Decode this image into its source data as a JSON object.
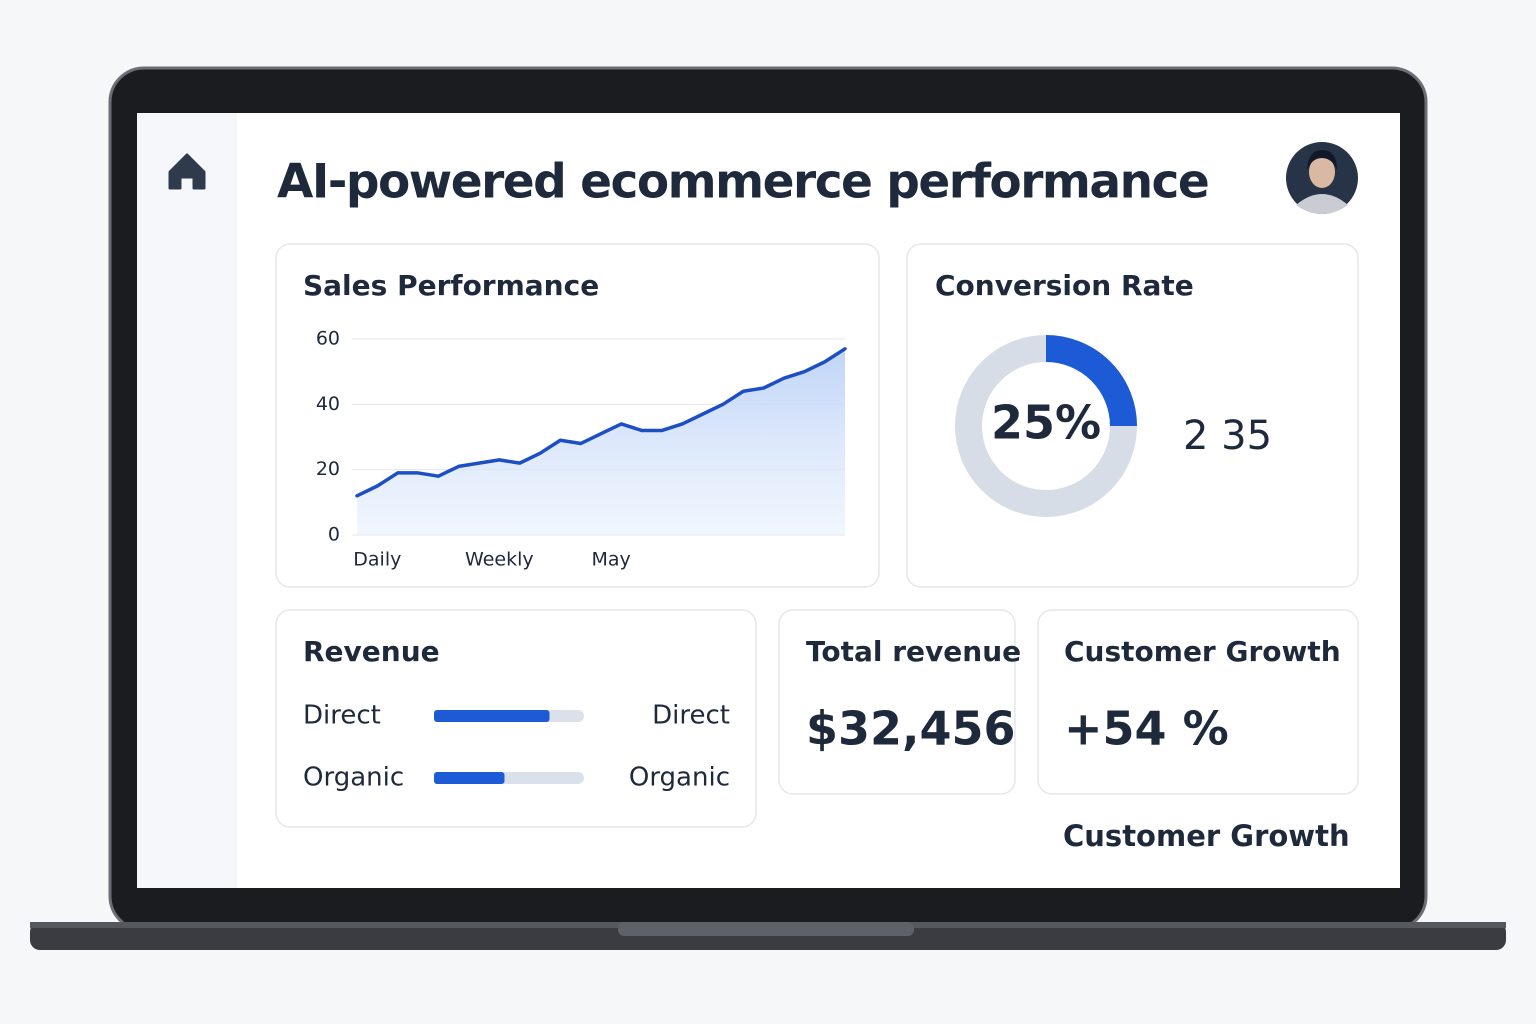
{
  "header": {
    "title": "AI-powered ecommerce performance"
  },
  "chart_data": [
    {
      "type": "line",
      "title": "Sales Performance",
      "x": [
        0,
        1,
        2,
        3,
        4,
        5,
        6,
        7,
        8,
        9,
        10,
        11,
        12,
        13,
        14,
        15,
        16,
        17,
        18,
        19,
        20,
        21,
        22,
        23,
        24
      ],
      "values": [
        12,
        15,
        19,
        19,
        18,
        21,
        22,
        23,
        22,
        25,
        29,
        28,
        31,
        34,
        32,
        32,
        34,
        37,
        40,
        44,
        45,
        48,
        50,
        53,
        57
      ],
      "color": "#1d4fc4",
      "xlim": [
        0,
        24
      ],
      "ylim": [
        0,
        60
      ],
      "yticks": [
        0,
        20,
        40,
        60
      ],
      "xticks": [
        {
          "value": 1,
          "label": "Daily"
        },
        {
          "value": 7,
          "label": "Weekly"
        },
        {
          "value": 12.5,
          "label": "May"
        }
      ],
      "grid": true
    },
    {
      "type": "donut",
      "title": "Conversion Rate",
      "values": [
        25
      ],
      "value_labels": [
        "25%"
      ],
      "color": "#1d5bd6",
      "annotation": "2 35"
    },
    {
      "type": "bar",
      "title": "Revenue",
      "categories": [
        "Direct",
        "Organic"
      ],
      "values": [
        77,
        47
      ],
      "xlim": [
        0,
        100
      ],
      "color": "#1d5bd6",
      "right_labels": [
        "Direct",
        "Organic"
      ]
    }
  ],
  "cards": [
    {
      "title": "Total revenue",
      "value": "$32,456"
    },
    {
      "title": "Customer Growth",
      "value": "+54 %"
    }
  ],
  "footer": {
    "label": "Customer Growth"
  }
}
